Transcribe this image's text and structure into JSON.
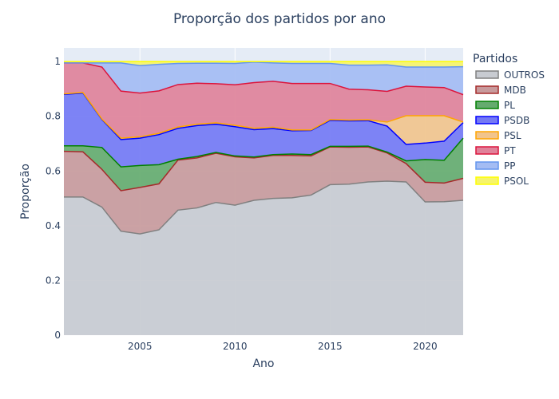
{
  "chart_data": {
    "type": "area",
    "stacked": true,
    "title": "Proporção dos partidos por ano",
    "xlabel": "Ano",
    "ylabel": "Proporção",
    "xlim": [
      2001,
      2022
    ],
    "ylim": [
      0,
      1.05
    ],
    "x_ticks": [
      2005,
      2010,
      2015,
      2020
    ],
    "y_ticks": [
      0,
      0.2,
      0.4,
      0.6,
      0.8,
      1
    ],
    "y_tick_labels": [
      "0",
      "0.2",
      "0.4",
      "0.6",
      "0.8",
      "1"
    ],
    "grid": true,
    "legend_title": "Partidos",
    "legend_position": "right",
    "x": [
      2001,
      2002,
      2003,
      2004,
      2005,
      2006,
      2007,
      2008,
      2009,
      2010,
      2011,
      2012,
      2013,
      2014,
      2015,
      2016,
      2017,
      2018,
      2019,
      2020,
      2021,
      2022
    ],
    "series": [
      {
        "name": "OUTROS",
        "line_color": "#808080",
        "fill_color": "#c8cbd1",
        "values": [
          0.505,
          0.505,
          0.468,
          0.38,
          0.37,
          0.385,
          0.457,
          0.465,
          0.485,
          0.475,
          0.493,
          0.5,
          0.502,
          0.512,
          0.55,
          0.552,
          0.56,
          0.563,
          0.56,
          0.487,
          0.488,
          0.493
        ]
      },
      {
        "name": "MDB",
        "line_color": "#a52a2a",
        "fill_color": "#c89a9c",
        "values": [
          0.167,
          0.165,
          0.138,
          0.148,
          0.17,
          0.168,
          0.183,
          0.183,
          0.18,
          0.177,
          0.155,
          0.157,
          0.155,
          0.143,
          0.138,
          0.135,
          0.128,
          0.103,
          0.067,
          0.072,
          0.068,
          0.08
        ]
      },
      {
        "name": "PL",
        "line_color": "#008000",
        "fill_color": "#65ab6f",
        "values": [
          0.02,
          0.022,
          0.08,
          0.087,
          0.08,
          0.07,
          0.003,
          0.005,
          0.003,
          0.003,
          0.003,
          0.003,
          0.005,
          0.005,
          0.002,
          0.003,
          0.003,
          0.003,
          0.01,
          0.083,
          0.083,
          0.147
        ]
      },
      {
        "name": "PSDB",
        "line_color": "#0000ff",
        "fill_color": "#7479f4",
        "values": [
          0.188,
          0.193,
          0.102,
          0.1,
          0.1,
          0.11,
          0.113,
          0.113,
          0.103,
          0.107,
          0.1,
          0.095,
          0.085,
          0.088,
          0.095,
          0.093,
          0.093,
          0.095,
          0.06,
          0.06,
          0.07,
          0.057
        ]
      },
      {
        "name": "PSL",
        "line_color": "#ffa500",
        "fill_color": "#f1c48d",
        "values": [
          0.002,
          0.002,
          0.002,
          0.005,
          0.005,
          0.005,
          0.005,
          0.005,
          0.005,
          0.005,
          0.005,
          0.005,
          0.003,
          0.002,
          0.003,
          0.003,
          0.003,
          0.015,
          0.105,
          0.1,
          0.093,
          0.002
        ]
      },
      {
        "name": "PT",
        "line_color": "#dc143c",
        "fill_color": "#e0829a",
        "values": [
          0.113,
          0.108,
          0.19,
          0.172,
          0.16,
          0.155,
          0.155,
          0.15,
          0.143,
          0.148,
          0.167,
          0.168,
          0.17,
          0.17,
          0.132,
          0.113,
          0.11,
          0.112,
          0.108,
          0.105,
          0.103,
          0.1
        ]
      },
      {
        "name": "PP",
        "line_color": "#6495ed",
        "fill_color": "#a4bcf3",
        "values": [
          0.0,
          0.0,
          0.015,
          0.103,
          0.1,
          0.097,
          0.077,
          0.073,
          0.075,
          0.078,
          0.075,
          0.067,
          0.073,
          0.073,
          0.073,
          0.088,
          0.09,
          0.097,
          0.07,
          0.073,
          0.075,
          0.102
        ]
      },
      {
        "name": "PSOL",
        "line_color": "#ffff00",
        "fill_color": "#f6f46b",
        "values": [
          0.005,
          0.005,
          0.005,
          0.005,
          0.015,
          0.01,
          0.007,
          0.006,
          0.006,
          0.007,
          0.002,
          0.005,
          0.007,
          0.007,
          0.007,
          0.013,
          0.013,
          0.012,
          0.02,
          0.02,
          0.02,
          0.019
        ]
      }
    ]
  }
}
